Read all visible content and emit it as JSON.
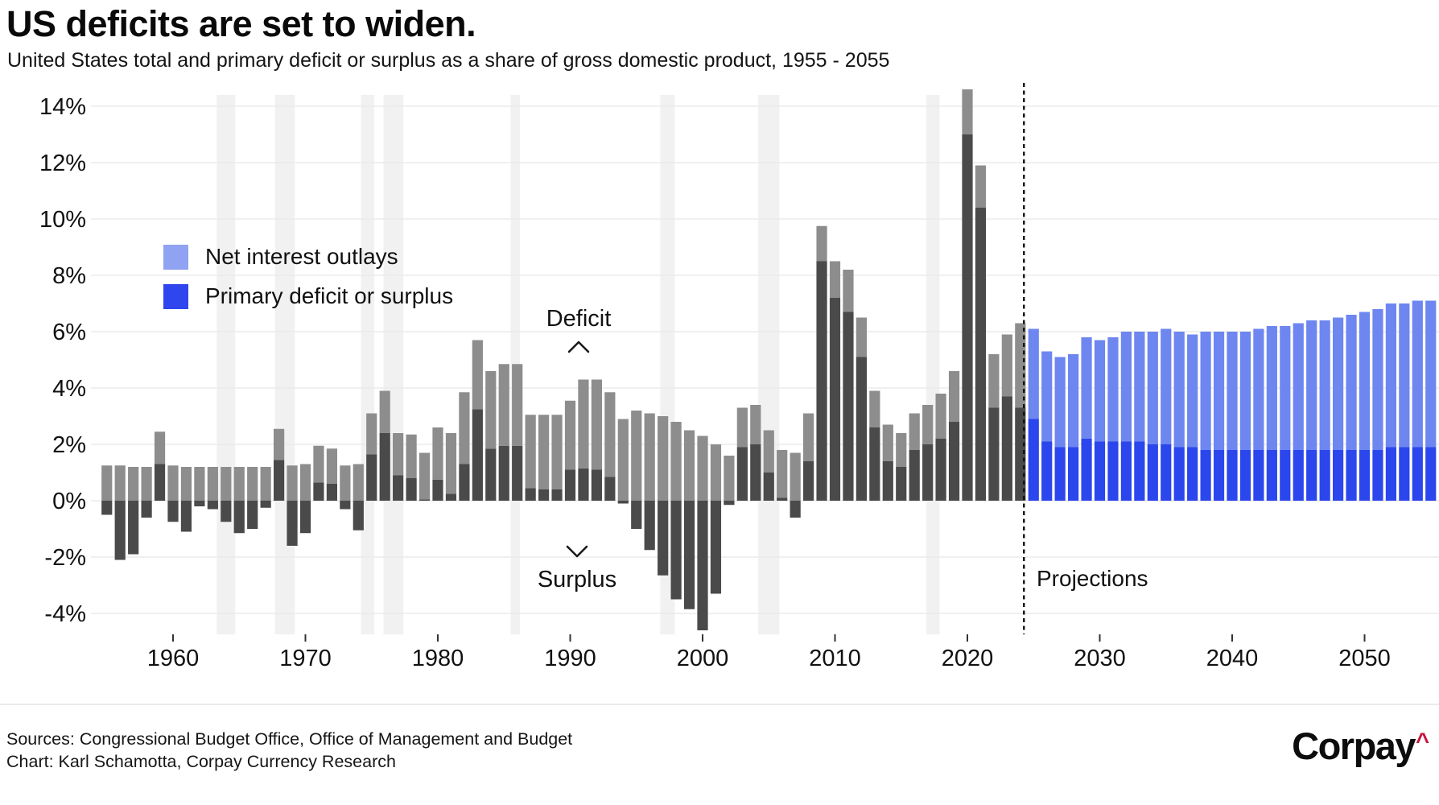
{
  "header": {
    "title": "US deficits are set to widen.",
    "subtitle": "United States total and primary deficit or surplus as a share of gross domestic product, 1955 - 2055"
  },
  "legend": {
    "items": [
      {
        "label": "Net interest outlays",
        "swatch_color": "#8FA3F2"
      },
      {
        "label": "Primary deficit or surplus",
        "swatch_color": "#2F45EE"
      }
    ]
  },
  "annotations": {
    "deficit_label": "Deficit",
    "surplus_label": "Surplus",
    "projections_label": "Projections"
  },
  "footer": {
    "sources_line": "Sources: Congressional Budget Office, Office of Management and Budget",
    "credit_line": "Chart: Karl Schamotta, Corpay Currency Research",
    "logo_text": "Corpay",
    "logo_caret": "^",
    "logo_caret_color": "#C9143C"
  },
  "chart_data": {
    "type": "bar",
    "stacked": true,
    "title": "US deficits are set to widen.",
    "subtitle": "United States total and primary deficit or surplus as a share of gross domestic product, 1955 - 2055",
    "unit": "percent of GDP",
    "years_start": 1955,
    "years_end": 2055,
    "projection_start": 2025,
    "x_axis": {
      "ticks": [
        1960,
        1970,
        1980,
        1990,
        2000,
        2010,
        2020,
        2030,
        2040,
        2050
      ]
    },
    "y_axis": {
      "ticks": [
        14,
        12,
        10,
        8,
        6,
        4,
        2,
        0,
        -2,
        -4
      ],
      "suffix": "%",
      "range": [
        -4.7,
        15.1
      ]
    },
    "grid": {
      "show_horizontal": true,
      "color": "#ebebeb",
      "band_color": "#f1f1f1"
    },
    "legend_position": "upper-left-inside",
    "projection_line": {
      "style": "dashed",
      "color": "#111111",
      "label": "Projections"
    },
    "highlight_bands": [
      [
        1963.3,
        1964.7
      ],
      [
        1967.7,
        1969.2
      ],
      [
        1974.2,
        1975.2
      ],
      [
        1975.9,
        1977.4
      ],
      [
        1985.5,
        1986.2
      ],
      [
        1996.8,
        1997.9
      ],
      [
        2004.2,
        2005.8
      ],
      [
        2016.9,
        2017.9
      ]
    ],
    "series": [
      {
        "name": "Primary deficit or surplus",
        "color_historical": "#4a4a4a",
        "color_projected": "#2B46ED",
        "values": [
          -0.5,
          -2.1,
          -1.9,
          -0.6,
          1.3,
          -0.75,
          -1.1,
          -0.2,
          -0.3,
          -0.75,
          -1.15,
          -1.0,
          -0.25,
          1.45,
          -1.6,
          -1.15,
          0.65,
          0.6,
          -0.3,
          -1.05,
          1.65,
          2.4,
          0.9,
          0.8,
          0.05,
          0.75,
          0.25,
          1.3,
          3.25,
          1.85,
          1.95,
          1.95,
          0.45,
          0.4,
          0.4,
          1.1,
          1.15,
          1.1,
          0.85,
          -0.1,
          -1.0,
          -1.75,
          -2.65,
          -3.5,
          -3.85,
          -4.6,
          -3.3,
          -0.15,
          1.9,
          2.0,
          1.0,
          0.1,
          -0.6,
          1.4,
          8.5,
          7.2,
          6.7,
          5.1,
          2.6,
          1.4,
          1.2,
          1.8,
          2.0,
          2.2,
          2.8,
          13.0,
          10.4,
          3.3,
          3.7,
          3.3,
          2.9,
          2.1,
          1.9,
          1.9,
          2.2,
          2.1,
          2.1,
          2.1,
          2.1,
          2.0,
          2.0,
          1.9,
          1.9,
          1.8,
          1.8,
          1.8,
          1.8,
          1.8,
          1.8,
          1.8,
          1.8,
          1.8,
          1.8,
          1.8,
          1.8,
          1.8,
          1.8,
          1.9,
          1.9,
          1.9,
          1.9
        ]
      },
      {
        "name": "Net interest outlays",
        "color_historical": "#8d8d8d",
        "color_projected": "#6E86F0",
        "values": [
          1.25,
          1.25,
          1.2,
          1.2,
          1.15,
          1.25,
          1.2,
          1.2,
          1.2,
          1.2,
          1.2,
          1.2,
          1.2,
          1.1,
          1.25,
          1.3,
          1.3,
          1.25,
          1.25,
          1.3,
          1.45,
          1.5,
          1.5,
          1.55,
          1.65,
          1.85,
          2.15,
          2.55,
          2.45,
          2.75,
          2.9,
          2.9,
          2.6,
          2.65,
          2.65,
          2.45,
          3.15,
          3.2,
          3.0,
          2.9,
          3.2,
          3.1,
          3.0,
          2.8,
          2.5,
          2.3,
          2.0,
          1.6,
          1.4,
          1.4,
          1.5,
          1.7,
          1.7,
          1.7,
          1.25,
          1.3,
          1.5,
          1.4,
          1.3,
          1.3,
          1.2,
          1.3,
          1.4,
          1.6,
          1.8,
          1.6,
          1.5,
          1.9,
          2.2,
          3.0,
          3.2,
          3.2,
          3.2,
          3.3,
          3.6,
          3.6,
          3.7,
          3.9,
          3.9,
          4.0,
          4.1,
          4.1,
          4.0,
          4.2,
          4.2,
          4.2,
          4.2,
          4.3,
          4.4,
          4.4,
          4.5,
          4.6,
          4.6,
          4.7,
          4.8,
          4.9,
          5.0,
          5.1,
          5.1,
          5.2,
          5.2
        ]
      }
    ]
  }
}
